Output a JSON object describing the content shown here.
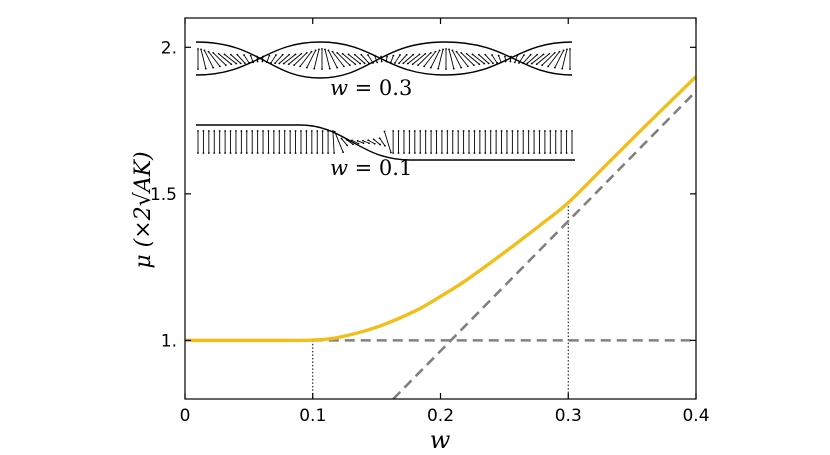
{
  "chart_data": {
    "type": "line",
    "xlabel": "w",
    "ylabel": "μ (×2√AK)",
    "xlim": [
      0,
      0.4
    ],
    "ylim": [
      0.8,
      2.1
    ],
    "xticks": [
      {
        "value": 0,
        "label": "0"
      },
      {
        "value": 0.1,
        "label": "0.1"
      },
      {
        "value": 0.2,
        "label": "0.2"
      },
      {
        "value": 0.3,
        "label": "0.3"
      },
      {
        "value": 0.4,
        "label": "0.4"
      }
    ],
    "yticks": [
      {
        "value": 1.0,
        "label": "1."
      },
      {
        "value": 1.5,
        "label": "1.5"
      },
      {
        "value": 2.0,
        "label": "2."
      }
    ],
    "grid": false,
    "series": [
      {
        "style": "solid",
        "color": "#F2BE1A",
        "x": [
          0,
          0.05,
          0.08,
          0.1,
          0.12,
          0.15,
          0.18,
          0.2,
          0.22,
          0.25,
          0.28,
          0.3,
          0.33,
          0.36,
          0.4
        ],
        "y": [
          1.0,
          1.0,
          1.0,
          1.001,
          1.01,
          1.045,
          1.1,
          1.15,
          1.205,
          1.3,
          1.4,
          1.47,
          1.6,
          1.73,
          1.9
        ]
      },
      {
        "style": "dashed",
        "color": "#808080",
        "x": [
          0.1,
          0.4
        ],
        "y": [
          1.0,
          1.0
        ]
      },
      {
        "style": "dashed",
        "color": "#808080",
        "x": [
          0.163,
          0.4
        ],
        "y": [
          0.8,
          1.85
        ]
      }
    ],
    "markers": [
      {
        "x": 0.1,
        "y": 1.0
      },
      {
        "x": 0.3,
        "y": 1.47
      }
    ],
    "annotations": [
      {
        "var": "w",
        "rest": " = 0.3"
      },
      {
        "var": "w",
        "rest": " = 0.1"
      }
    ]
  }
}
